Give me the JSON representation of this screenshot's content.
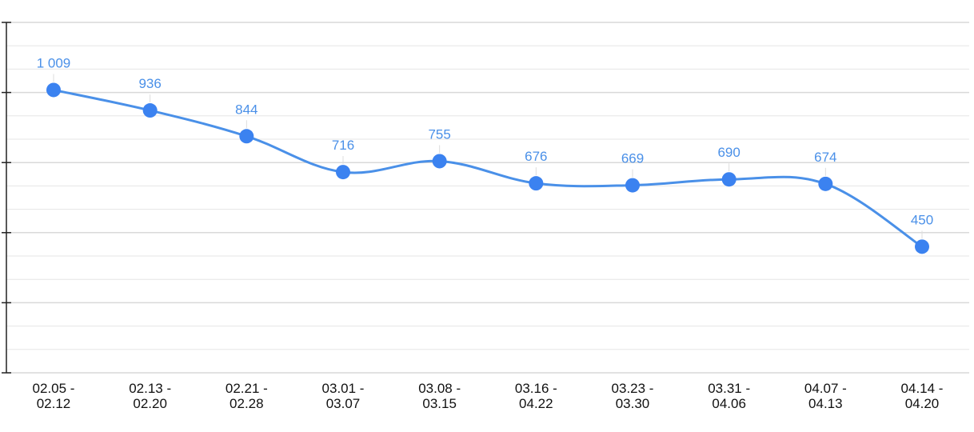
{
  "chart_data": {
    "type": "line",
    "title": "",
    "xlabel": "",
    "ylabel": "",
    "categories": [
      [
        "02.05 -",
        "02.12"
      ],
      [
        "02.13 -",
        "02.20"
      ],
      [
        "02.21 -",
        "02.28"
      ],
      [
        "03.01 -",
        "03.07"
      ],
      [
        "03.08 -",
        "03.15"
      ],
      [
        "03.16 -",
        "04.22"
      ],
      [
        "03.23 -",
        "03.30"
      ],
      [
        "03.31 -",
        "04.06"
      ],
      [
        "04.07 -",
        "04.13"
      ],
      [
        "04.14 -",
        "04.20"
      ]
    ],
    "values": [
      1009,
      936,
      844,
      716,
      755,
      676,
      669,
      690,
      674,
      450
    ],
    "data_labels": [
      "1 009",
      "936",
      "844",
      "716",
      "755",
      "676",
      "669",
      "690",
      "674",
      "450"
    ],
    "ylim": [
      0,
      1250
    ],
    "y_major_step": 250,
    "y_minor_step": 83.33,
    "y_tick_labels_visible": false,
    "grid": true,
    "smooth": true,
    "line_color": "#4a90e8",
    "point_color": "#3b82f0",
    "label_color": "#4a90e8",
    "grid_color": "#e6e6e6",
    "axis_color": "#222222"
  }
}
